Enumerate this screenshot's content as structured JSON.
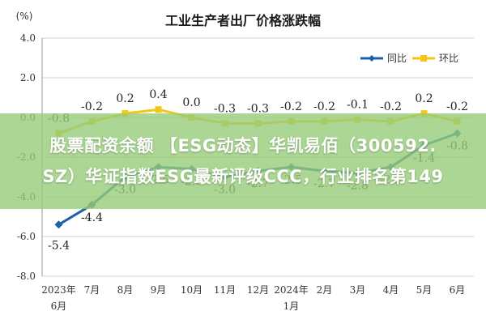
{
  "chart_data": {
    "type": "line",
    "title": "工业生产者出厂价格涨跌幅",
    "ylabel": "(%)",
    "ylim": [
      -8.0,
      4.0
    ],
    "yticks": [
      "4.0",
      "2.0",
      "0.0",
      "-2.0",
      "-4.0",
      "-6.0",
      "-8.0"
    ],
    "ytick_values": [
      4,
      2,
      0,
      -2,
      -4,
      -6,
      -8
    ],
    "categories": [
      {
        "top": "2023年",
        "bottom": "6月"
      },
      {
        "top": "7月",
        "bottom": ""
      },
      {
        "top": "8月",
        "bottom": ""
      },
      {
        "top": "9月",
        "bottom": ""
      },
      {
        "top": "10月",
        "bottom": ""
      },
      {
        "top": "11月",
        "bottom": ""
      },
      {
        "top": "12月",
        "bottom": ""
      },
      {
        "top": "2024年",
        "bottom": "1月"
      },
      {
        "top": "2月",
        "bottom": ""
      },
      {
        "top": "3月",
        "bottom": ""
      },
      {
        "top": "4月",
        "bottom": ""
      },
      {
        "top": "5月",
        "bottom": ""
      },
      {
        "top": "6月",
        "bottom": ""
      }
    ],
    "series": [
      {
        "name": "同比",
        "color": "#1f5fa8",
        "values": [
          -5.4,
          -4.4,
          -3.0,
          -2.5,
          -2.6,
          -3.0,
          -2.7,
          -2.5,
          -2.7,
          -2.8,
          -2.5,
          -1.4,
          -0.8
        ],
        "labels": [
          "-5.4",
          "-4.4",
          "-3.0",
          "-2.5",
          "-2.6",
          "-3.0",
          "-2.7",
          "-2.5",
          "-2.7",
          "-2.8",
          "-2.5",
          "-1.4",
          "-0.8"
        ]
      },
      {
        "name": "环比",
        "color": "#f5c518",
        "values": [
          -0.8,
          -0.2,
          0.2,
          0.4,
          0.0,
          -0.3,
          -0.3,
          -0.2,
          -0.2,
          -0.1,
          -0.2,
          0.2,
          -0.2
        ],
        "labels": [
          "-0.8",
          "-0.2",
          "0.2",
          "0.4",
          "0.0",
          "-0.3",
          "-0.3",
          "-0.2",
          "-0.2",
          "-0.1",
          "-0.2",
          "0.2",
          "-0.2"
        ]
      }
    ],
    "legend_position": "top-right",
    "grid": true
  },
  "banner": {
    "line1": "股票配资余额 【ESG动态】华凯易佰（300592.",
    "line2": "SZ）华证指数ESG最新评级CCC，行业排名第149"
  }
}
